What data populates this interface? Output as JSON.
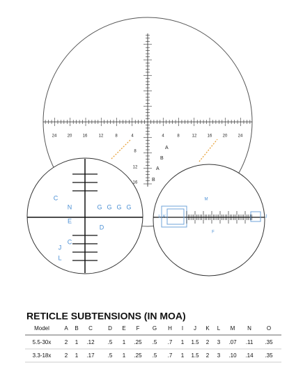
{
  "reticle": {
    "horizontal_labels": [
      "24",
      "20",
      "16",
      "12",
      "8",
      "4",
      "4",
      "8",
      "12",
      "16",
      "20",
      "24"
    ],
    "vertical_labels": [
      "8",
      "12",
      "16"
    ],
    "side_labels": [
      "A",
      "B",
      "A",
      "B"
    ]
  },
  "detail_left": {
    "labels": [
      "C",
      "N",
      "G",
      "G",
      "G",
      "G",
      "E",
      "D",
      "C",
      "J",
      "L"
    ]
  },
  "detail_right": {
    "labels": [
      "L",
      "K",
      "M",
      "F",
      "J"
    ]
  },
  "table": {
    "title": "RETICLE SUBTENSIONS (IN MOA)",
    "header": [
      "Model",
      "A",
      "B",
      "C",
      "D",
      "E",
      "F",
      "G",
      "H",
      "I",
      "J",
      "K",
      "L",
      "M",
      "N",
      "O"
    ],
    "rows": [
      [
        "5.5-30x",
        "2",
        "1",
        ".12",
        ".5",
        "1",
        ".25",
        ".5",
        ".7",
        "1",
        "1.5",
        "2",
        "3",
        ".07",
        ".11",
        ".35"
      ],
      [
        "3.3-18x",
        "2",
        "1",
        ".17",
        ".5",
        "1",
        ".25",
        ".5",
        ".7",
        "1",
        "1.5",
        "2",
        "3",
        ".10",
        ".14",
        ".35"
      ]
    ]
  }
}
